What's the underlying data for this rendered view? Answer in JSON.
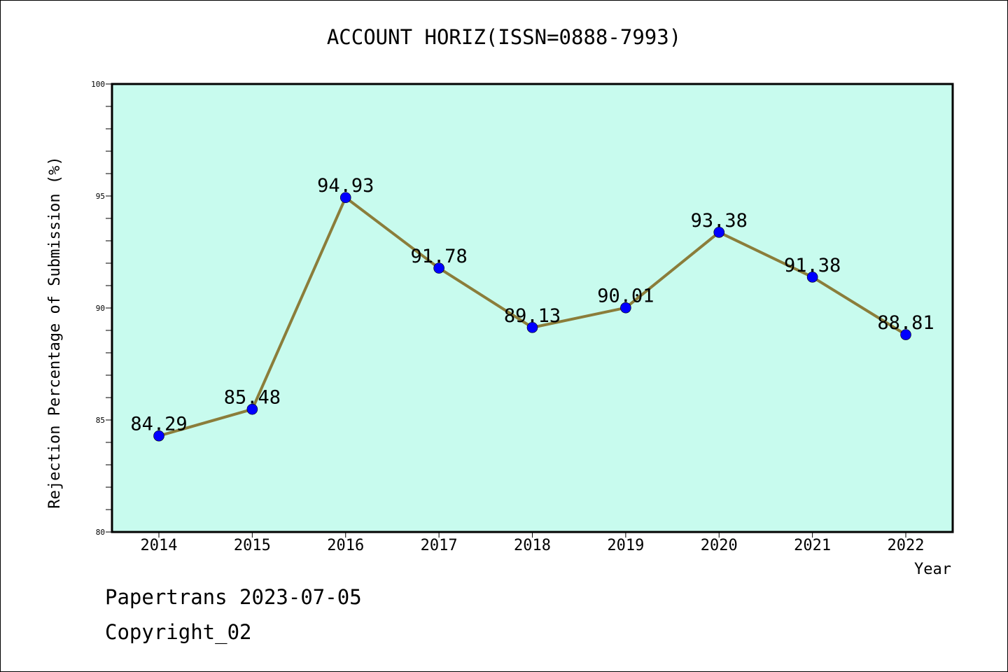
{
  "chart_data": {
    "type": "line",
    "title": "ACCOUNT HORIZ(ISSN=0888-7993)",
    "xlabel": "Year",
    "ylabel": "Rejection Percentage of Submission (%)",
    "categories": [
      "2014",
      "2015",
      "2016",
      "2017",
      "2018",
      "2019",
      "2020",
      "2021",
      "2022"
    ],
    "series": [
      {
        "values": [
          84.29,
          85.48,
          94.93,
          91.78,
          89.13,
          90.01,
          93.38,
          91.38,
          88.81
        ],
        "labels": [
          "84.29",
          "85.48",
          "94.93",
          "91.78",
          "89.13",
          "90.01",
          "93.38",
          "91.38",
          "88.81"
        ]
      }
    ],
    "ylim": [
      80,
      100
    ],
    "yticks": [
      80,
      85,
      90,
      95,
      100
    ],
    "ytick_labels": [
      "80",
      "85",
      "90",
      "95",
      "100"
    ],
    "grid": false,
    "colors": {
      "plot_background": "#c8fbee",
      "line": "#8b7d3a",
      "marker": "#0000ff"
    }
  },
  "footer": {
    "line1": "Papertrans 2023-07-05",
    "line2": "Copyright_02"
  }
}
